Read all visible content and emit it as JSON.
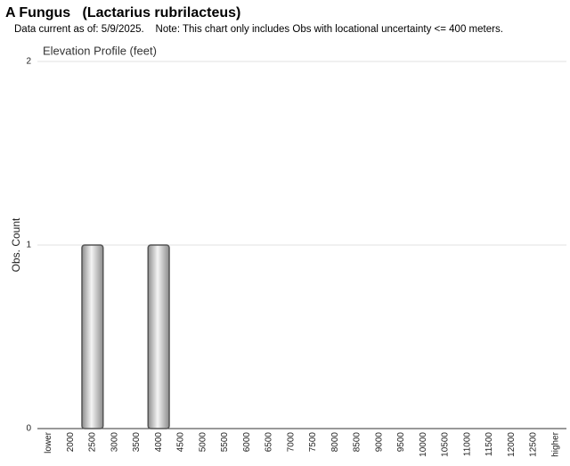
{
  "chart_data": {
    "type": "bar",
    "title": "A Fungus   (Lactarius rubrilacteus)",
    "subtitle": "Data current as of: 5/9/2025.    Note: This chart only includes Obs with locational uncertainty <= 400 meters.",
    "plot_title": "Elevation Profile (feet)",
    "y_label": "Obs. Count",
    "categories": [
      "lower",
      "2000",
      "2500",
      "3000",
      "3500",
      "4000",
      "4500",
      "5000",
      "5500",
      "6000",
      "6500",
      "7000",
      "7500",
      "8000",
      "8500",
      "9000",
      "9500",
      "10000",
      "10500",
      "11000",
      "11500",
      "12000",
      "12500",
      "higher"
    ],
    "values": [
      0,
      0,
      1,
      0,
      0,
      1,
      0,
      0,
      0,
      0,
      0,
      0,
      0,
      0,
      0,
      0,
      0,
      0,
      0,
      0,
      0,
      0,
      0,
      0
    ],
    "color": "#8c8c8c",
    "ylim": [
      0,
      2
    ],
    "yticks": [
      0,
      1,
      2
    ],
    "grid": true
  }
}
